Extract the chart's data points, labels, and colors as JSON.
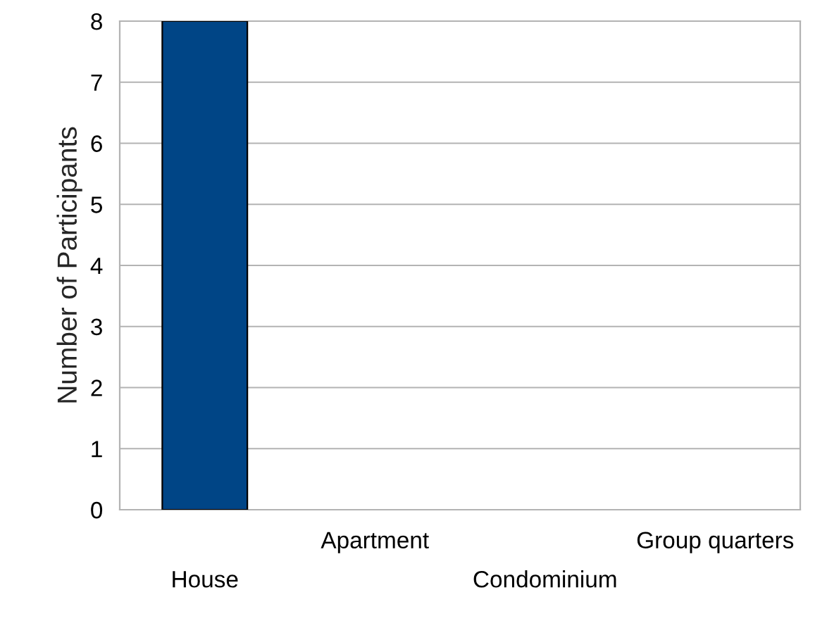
{
  "chart_data": {
    "type": "bar",
    "ylabel": "Number of Participants",
    "categories": [
      "House",
      "Apartment",
      "Condominium",
      "Group quarters"
    ],
    "values": [
      8,
      0,
      0,
      0
    ],
    "color": "#004586",
    "ylim": [
      0,
      8
    ],
    "yticks": [
      0,
      1,
      2,
      3,
      4,
      5,
      6,
      7,
      8
    ],
    "grid": "y"
  }
}
